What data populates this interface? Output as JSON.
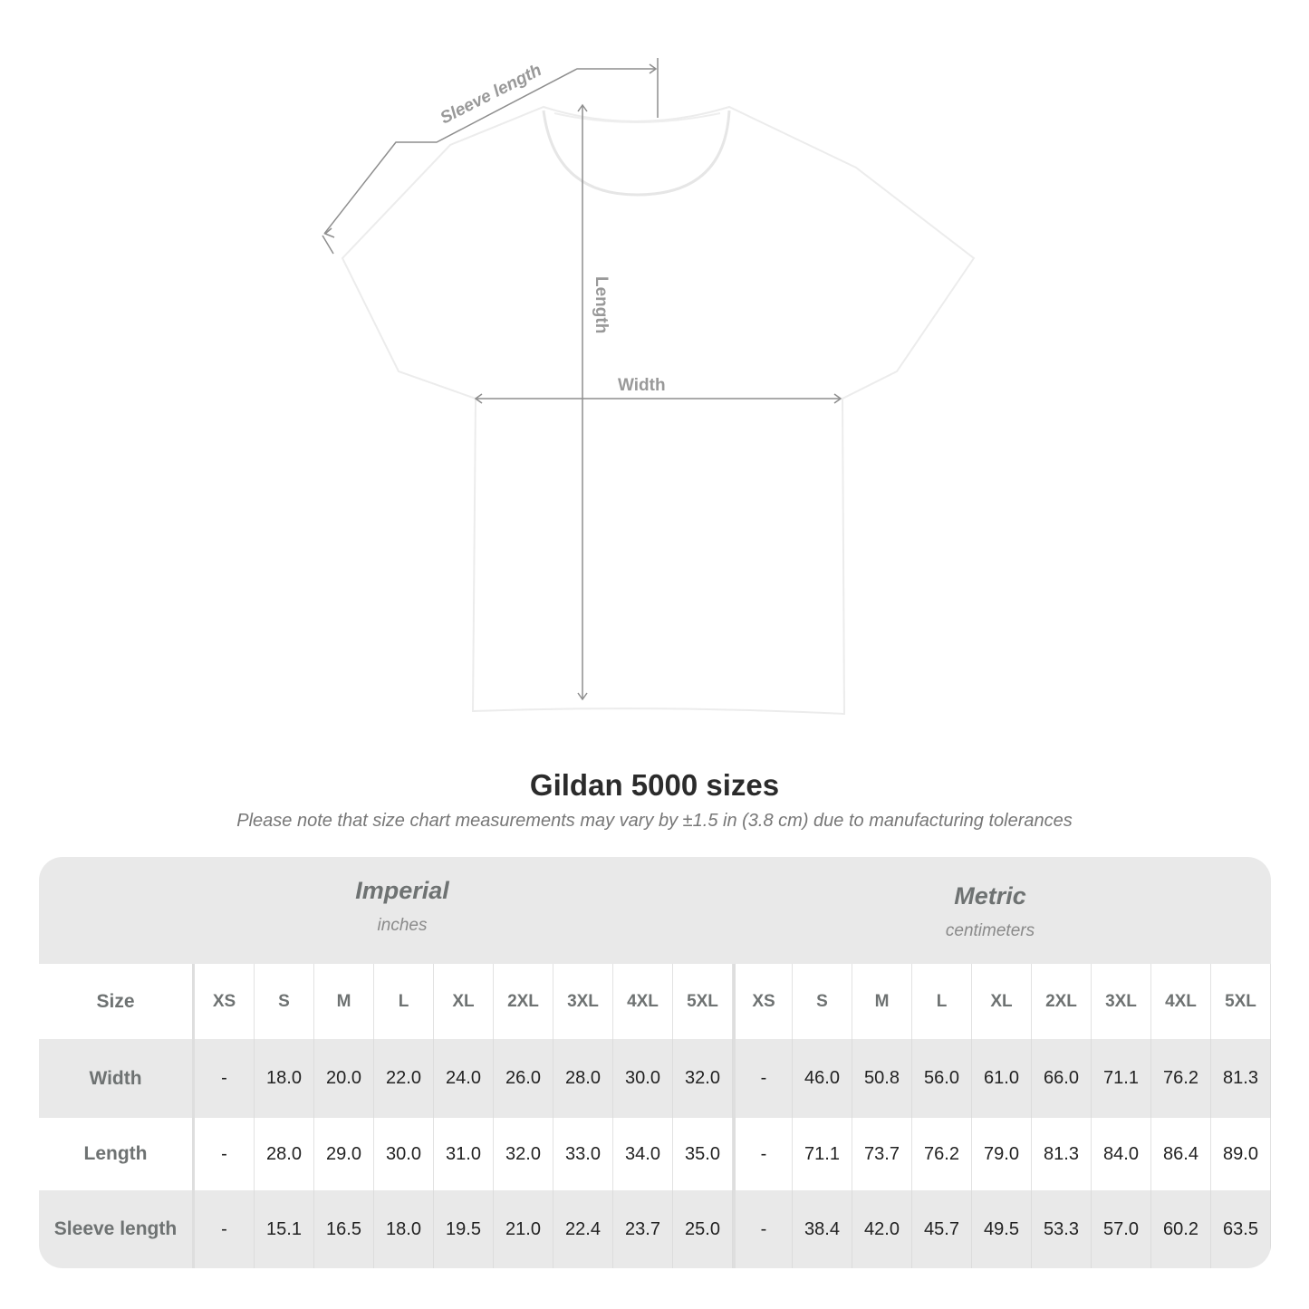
{
  "diagram": {
    "labels": {
      "sleeve": "Sleeve length",
      "length": "Length",
      "width": "Width"
    },
    "colors": {
      "measure_line": "#8e8e8e",
      "shirt": "#ffffff"
    }
  },
  "title": "Gildan 5000 sizes",
  "note": "Please note that size chart measurements may vary by ±1.5 in (3.8 cm) due to manufacturing tolerances",
  "table": {
    "imperial": {
      "name": "Imperial",
      "unit": "inches"
    },
    "metric": {
      "name": "Metric",
      "unit": "centimeters"
    },
    "size_label": "Size",
    "sizes": [
      "XS",
      "S",
      "M",
      "L",
      "XL",
      "2XL",
      "3XL",
      "4XL",
      "5XL"
    ],
    "rows": [
      {
        "label": "Width",
        "imperial": [
          "-",
          "18.0",
          "20.0",
          "22.0",
          "24.0",
          "26.0",
          "28.0",
          "30.0",
          "32.0"
        ],
        "metric": [
          "-",
          "46.0",
          "50.8",
          "56.0",
          "61.0",
          "66.0",
          "71.1",
          "76.2",
          "81.3"
        ]
      },
      {
        "label": "Length",
        "imperial": [
          "-",
          "28.0",
          "29.0",
          "30.0",
          "31.0",
          "32.0",
          "33.0",
          "34.0",
          "35.0"
        ],
        "metric": [
          "-",
          "71.1",
          "73.7",
          "76.2",
          "79.0",
          "81.3",
          "84.0",
          "86.4",
          "89.0"
        ]
      },
      {
        "label": "Sleeve length",
        "imperial": [
          "-",
          "15.1",
          "16.5",
          "18.0",
          "19.5",
          "21.0",
          "22.4",
          "23.7",
          "25.0"
        ],
        "metric": [
          "-",
          "38.4",
          "42.0",
          "45.7",
          "49.5",
          "53.3",
          "57.0",
          "60.2",
          "63.5"
        ]
      }
    ]
  }
}
